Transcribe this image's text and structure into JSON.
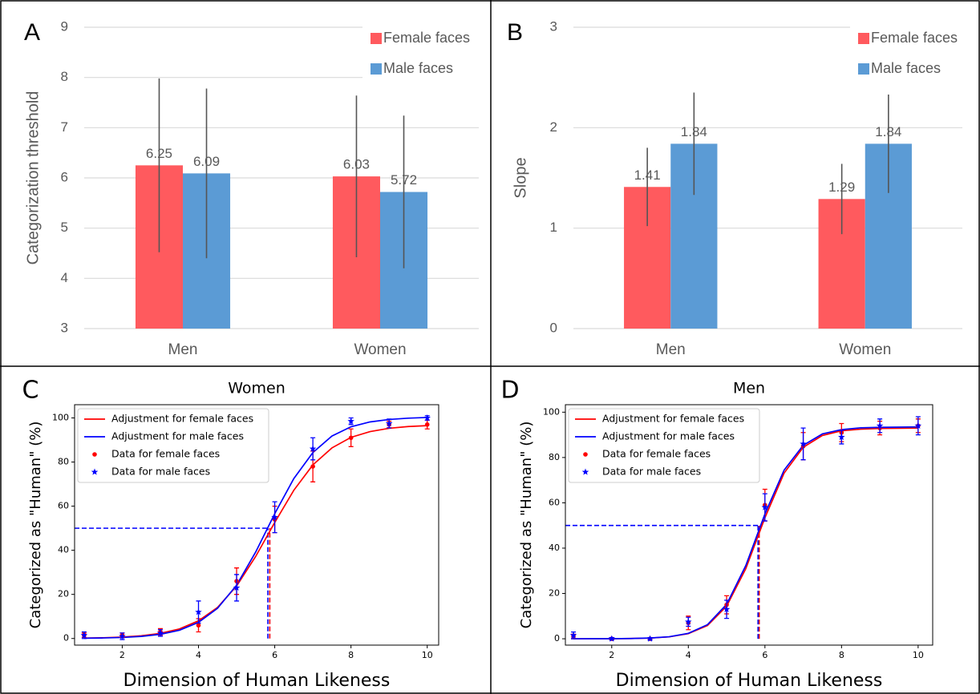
{
  "chart_data": [
    {
      "type": "bar",
      "panel": "A",
      "ylabel": "Categorization threshold",
      "categories": [
        "Men",
        "Women"
      ],
      "series": [
        {
          "name": "Female faces",
          "color": "#ff5a5e",
          "values": [
            6.25,
            6.03
          ],
          "errors": [
            1.73,
            1.61
          ]
        },
        {
          "name": "Male faces",
          "color": "#5b9bd5",
          "values": [
            6.09,
            5.72
          ],
          "errors": [
            1.69,
            1.52
          ]
        }
      ],
      "ylim": [
        3,
        9
      ],
      "yticks": [
        3,
        4,
        5,
        6,
        7,
        8,
        9
      ],
      "grid": true,
      "legend": "top-right"
    },
    {
      "type": "bar",
      "panel": "B",
      "ylabel": "Slope",
      "categories": [
        "Men",
        "Women"
      ],
      "series": [
        {
          "name": "Female faces",
          "color": "#ff5a5e",
          "values": [
            1.41,
            1.29
          ],
          "errors": [
            0.39,
            0.35
          ]
        },
        {
          "name": "Male faces",
          "color": "#5b9bd5",
          "values": [
            1.84,
            1.84
          ],
          "errors": [
            0.51,
            0.49
          ]
        }
      ],
      "ylim": [
        0,
        3
      ],
      "yticks": [
        0,
        1,
        2,
        3
      ],
      "grid": true,
      "legend": "top-right"
    },
    {
      "type": "line",
      "panel": "C",
      "title": "Women",
      "xlabel": "Dimension of Human Likeness",
      "ylabel": "Categorized as \"Human\" (%)",
      "threshold_level": 50,
      "series": [
        {
          "name": "Adjustment for female faces",
          "color": "#ff0000",
          "kind": "line",
          "threshold": 5.87,
          "x": [
            1,
            1.5,
            2,
            2.5,
            3,
            3.5,
            4,
            4.5,
            5,
            5.5,
            6,
            6.5,
            7,
            7.5,
            8,
            8.5,
            9,
            9.5,
            10
          ],
          "values": [
            0.18,
            0.34,
            0.65,
            1.24,
            2.34,
            4.35,
            8.0,
            14.1,
            23.8,
            37.2,
            52.6,
            67.2,
            78.7,
            86.4,
            91.2,
            93.8,
            95.3,
            96.1,
            96.5
          ]
        },
        {
          "name": "Adjustment for male faces",
          "color": "#0000ff",
          "kind": "line",
          "threshold": 5.82,
          "x": [
            1,
            1.5,
            2,
            2.5,
            3,
            3.5,
            4,
            4.5,
            5,
            5.5,
            6,
            6.5,
            7,
            7.5,
            8,
            8.5,
            9,
            9.5,
            10
          ],
          "values": [
            0.12,
            0.24,
            0.48,
            0.95,
            1.9,
            3.75,
            7.3,
            13.7,
            24.2,
            39.2,
            56.6,
            72.5,
            84.3,
            91.8,
            96.0,
            98.2,
            99.3,
            99.9,
            100.2
          ]
        },
        {
          "name": "Data for female faces",
          "color": "#ff0000",
          "kind": "points",
          "marker": "circle",
          "x": [
            1,
            2,
            3,
            4,
            5,
            6,
            7,
            8,
            9,
            10
          ],
          "values": [
            1.5,
            1.5,
            3,
            6,
            26,
            54,
            78,
            91,
            97,
            97
          ],
          "errors": [
            1,
            1,
            1.5,
            3,
            6,
            6,
            7,
            4,
            1.5,
            2
          ]
        },
        {
          "name": "Data for male faces",
          "color": "#0000ff",
          "kind": "points",
          "marker": "star",
          "x": [
            1,
            2,
            3,
            4,
            5,
            6,
            7,
            8,
            9,
            10
          ],
          "values": [
            1.5,
            1,
            2.5,
            12,
            23,
            55,
            86,
            98.5,
            97.5,
            100
          ],
          "errors": [
            1.5,
            1.5,
            1.5,
            5,
            6,
            7,
            5,
            1.5,
            2,
            1
          ]
        }
      ],
      "xlim": [
        0.75,
        10.3
      ],
      "xticks": [
        2,
        4,
        6,
        8,
        10
      ],
      "ylim": [
        -3,
        106
      ],
      "yticks": [
        0,
        20,
        40,
        60,
        80,
        100
      ],
      "legend": "top-left"
    },
    {
      "type": "line",
      "panel": "D",
      "title": "Men",
      "xlabel": "Dimension of Human Likeness",
      "ylabel": "Categorized as \"Human\" (%)",
      "threshold_level": 50,
      "series": [
        {
          "name": "Adjustment for female faces",
          "color": "#ff0000",
          "kind": "line",
          "threshold": 5.85,
          "x": [
            1,
            1.5,
            2,
            2.5,
            3,
            3.5,
            4,
            4.5,
            5,
            5.5,
            6,
            6.5,
            7,
            7.5,
            8,
            8.5,
            9,
            9.5,
            10
          ],
          "values": [
            0.01,
            0.015,
            0.04,
            0.11,
            0.31,
            0.84,
            2.25,
            5.85,
            14.4,
            30.9,
            53.4,
            73.1,
            84.5,
            89.7,
            91.8,
            92.5,
            92.8,
            92.9,
            93.0
          ]
        },
        {
          "name": "Adjustment for male faces",
          "color": "#0000ff",
          "kind": "line",
          "threshold": 5.82,
          "x": [
            1,
            1.5,
            2,
            2.5,
            3,
            3.5,
            4,
            4.5,
            5,
            5.5,
            6,
            6.5,
            7,
            7.5,
            8,
            8.5,
            9,
            9.5,
            10
          ],
          "values": [
            0.01,
            0.02,
            0.04,
            0.12,
            0.33,
            0.89,
            2.39,
            6.23,
            15.2,
            32.3,
            55.1,
            74.4,
            85.4,
            90.4,
            92.3,
            93.1,
            93.3,
            93.4,
            93.5
          ]
        },
        {
          "name": "Data for female faces",
          "color": "#ff0000",
          "kind": "points",
          "marker": "circle",
          "x": [
            1,
            2,
            3,
            4,
            5,
            6,
            7,
            8,
            9,
            10
          ],
          "values": [
            1,
            0,
            0,
            7,
            15,
            59,
            85,
            91,
            93,
            94
          ],
          "errors": [
            1,
            0.5,
            0.5,
            3,
            4,
            7,
            6,
            4,
            3,
            3
          ]
        },
        {
          "name": "Data for male faces",
          "color": "#0000ff",
          "kind": "points",
          "marker": "star",
          "x": [
            1,
            2,
            3,
            4,
            5,
            6,
            7,
            8,
            9,
            10
          ],
          "values": [
            1.5,
            0,
            0,
            7.5,
            13,
            58,
            86,
            89,
            94,
            94
          ],
          "errors": [
            1.5,
            0.5,
            0.5,
            2,
            4,
            6,
            7,
            3,
            3,
            4
          ]
        }
      ],
      "xlim": [
        0.79,
        10.38
      ],
      "xticks": [
        2,
        4,
        6,
        8,
        10
      ],
      "ylim": [
        -2.8,
        103.3
      ],
      "yticks": [
        0,
        20,
        40,
        60,
        80,
        100
      ],
      "legend": "top-left"
    }
  ]
}
